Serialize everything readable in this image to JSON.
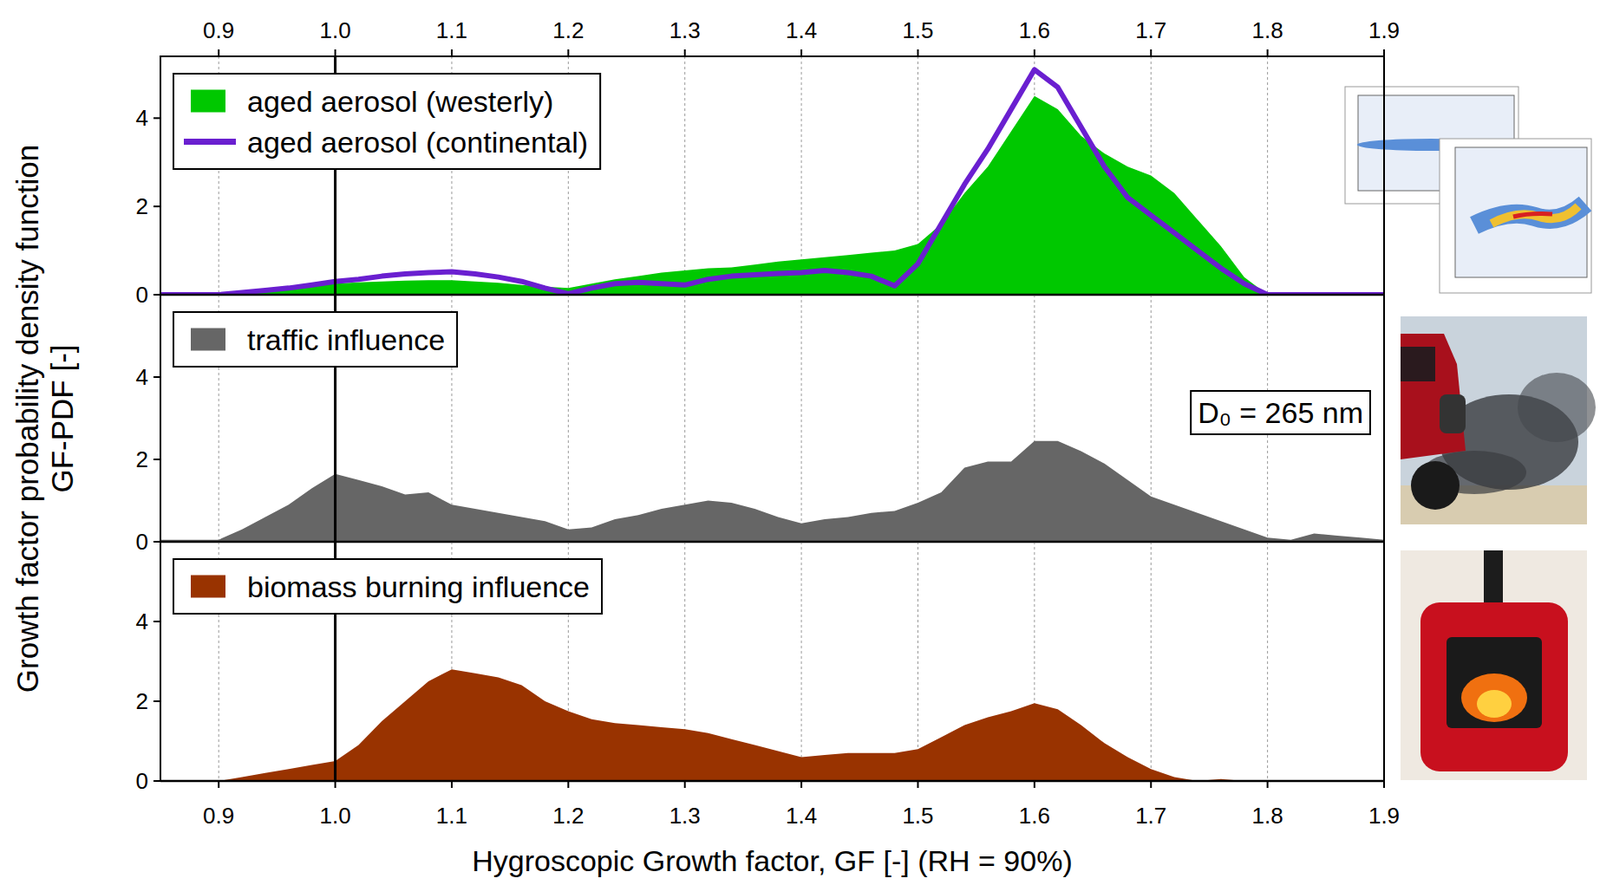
{
  "chart_data": [
    {
      "type": "area",
      "x": [
        0.85,
        0.9,
        0.92,
        0.94,
        0.96,
        0.98,
        1.0,
        1.02,
        1.04,
        1.06,
        1.08,
        1.1,
        1.12,
        1.14,
        1.16,
        1.18,
        1.2,
        1.22,
        1.24,
        1.26,
        1.28,
        1.3,
        1.32,
        1.34,
        1.36,
        1.38,
        1.4,
        1.42,
        1.44,
        1.46,
        1.48,
        1.5,
        1.52,
        1.54,
        1.56,
        1.58,
        1.6,
        1.62,
        1.64,
        1.66,
        1.68,
        1.7,
        1.72,
        1.74,
        1.76,
        1.78,
        1.8,
        1.82,
        1.84,
        1.86,
        1.88,
        1.9
      ],
      "series": [
        {
          "name": "aged aerosol (westerly)",
          "type": "area",
          "color": "#00c800",
          "values": [
            0,
            0,
            0.05,
            0.1,
            0.15,
            0.2,
            0.25,
            0.28,
            0.3,
            0.32,
            0.33,
            0.33,
            0.3,
            0.27,
            0.22,
            0.18,
            0.15,
            0.25,
            0.35,
            0.42,
            0.5,
            0.55,
            0.6,
            0.62,
            0.68,
            0.75,
            0.8,
            0.85,
            0.9,
            0.95,
            1.0,
            1.15,
            1.6,
            2.3,
            2.9,
            3.7,
            4.5,
            4.2,
            3.6,
            3.2,
            2.9,
            2.7,
            2.3,
            1.7,
            1.1,
            0.4,
            0,
            0,
            0,
            0,
            0,
            0
          ]
        },
        {
          "name": "aged aerosol (continental)",
          "type": "line",
          "color": "#6a1fd0",
          "values": [
            0,
            0,
            0.05,
            0.1,
            0.15,
            0.22,
            0.3,
            0.35,
            0.42,
            0.47,
            0.5,
            0.52,
            0.47,
            0.4,
            0.3,
            0.15,
            0.02,
            0.15,
            0.25,
            0.28,
            0.25,
            0.22,
            0.35,
            0.42,
            0.45,
            0.48,
            0.5,
            0.55,
            0.5,
            0.42,
            0.2,
            0.7,
            1.6,
            2.5,
            3.3,
            4.2,
            5.1,
            4.7,
            3.8,
            2.9,
            2.2,
            1.8,
            1.4,
            1.0,
            0.6,
            0.25,
            0,
            0,
            0,
            0,
            0,
            0
          ]
        }
      ],
      "xlim": [
        0.85,
        1.9
      ],
      "xticks": [
        0.9,
        {
          "value": 1,
          "label": "1.0"
        },
        1.1,
        1.2,
        1.3,
        1.4,
        1.5,
        1.6,
        1.7,
        1.8,
        1.9
      ],
      "ylim": [
        0,
        5.4
      ],
      "yticks": [
        0,
        2,
        4
      ],
      "grid": true,
      "legend": "upper left",
      "tick_labels": true,
      "reference_line": 1,
      "ylabel": [
        "Growth factor probability density function",
        "GF-PDF [-]"
      ]
    },
    {
      "type": "area",
      "x": [
        0.85,
        0.9,
        0.92,
        0.94,
        0.96,
        0.98,
        1.0,
        1.02,
        1.04,
        1.06,
        1.08,
        1.1,
        1.12,
        1.14,
        1.16,
        1.18,
        1.2,
        1.22,
        1.24,
        1.26,
        1.28,
        1.3,
        1.32,
        1.34,
        1.36,
        1.38,
        1.4,
        1.42,
        1.44,
        1.46,
        1.48,
        1.5,
        1.52,
        1.54,
        1.56,
        1.58,
        1.6,
        1.62,
        1.64,
        1.66,
        1.68,
        1.7,
        1.72,
        1.74,
        1.76,
        1.78,
        1.8,
        1.82,
        1.84,
        1.86,
        1.88,
        1.9
      ],
      "series": [
        {
          "name": "traffic influence",
          "color": "#666666",
          "values": [
            0.05,
            0.05,
            0.3,
            0.6,
            0.9,
            1.3,
            1.65,
            1.5,
            1.35,
            1.15,
            1.2,
            0.9,
            0.8,
            0.7,
            0.6,
            0.5,
            0.3,
            0.35,
            0.55,
            0.65,
            0.8,
            0.9,
            1.0,
            0.95,
            0.8,
            0.6,
            0.45,
            0.55,
            0.6,
            0.7,
            0.75,
            0.95,
            1.2,
            1.8,
            1.95,
            1.95,
            2.45,
            2.45,
            2.2,
            1.9,
            1.5,
            1.1,
            0.9,
            0.7,
            0.5,
            0.3,
            0.1,
            0.05,
            0.2,
            0.15,
            0.1,
            0.05
          ]
        }
      ],
      "xlim": [
        0.85,
        1.9
      ],
      "xticks": [
        0.9,
        {
          "value": 1,
          "label": "1.0"
        },
        1.1,
        1.2,
        1.3,
        1.4,
        1.5,
        1.6,
        1.7,
        1.8,
        1.9
      ],
      "ylim": [
        0,
        6
      ],
      "yticks": [
        0,
        2,
        4
      ],
      "grid": true,
      "legend": "upper left",
      "tick_labels": "y",
      "reference_line": 1,
      "annotation": "D₀ = 265 nm"
    },
    {
      "type": "area",
      "x": [
        0.85,
        0.9,
        0.92,
        0.94,
        0.96,
        0.98,
        1.0,
        1.02,
        1.04,
        1.06,
        1.08,
        1.1,
        1.12,
        1.14,
        1.16,
        1.18,
        1.2,
        1.22,
        1.24,
        1.26,
        1.28,
        1.3,
        1.32,
        1.34,
        1.36,
        1.38,
        1.4,
        1.42,
        1.44,
        1.46,
        1.48,
        1.5,
        1.52,
        1.54,
        1.56,
        1.58,
        1.6,
        1.62,
        1.64,
        1.66,
        1.68,
        1.7,
        1.72,
        1.74,
        1.76,
        1.78,
        1.8,
        1.82,
        1.84,
        1.86,
        1.88,
        1.9
      ],
      "series": [
        {
          "name": "biomass burning influence",
          "color": "#993300",
          "values": [
            0,
            0,
            0.1,
            0.2,
            0.3,
            0.4,
            0.5,
            0.9,
            1.5,
            2.0,
            2.5,
            2.8,
            2.7,
            2.6,
            2.4,
            2.0,
            1.75,
            1.55,
            1.45,
            1.4,
            1.35,
            1.3,
            1.2,
            1.05,
            0.9,
            0.75,
            0.6,
            0.65,
            0.7,
            0.7,
            0.7,
            0.8,
            1.1,
            1.4,
            1.6,
            1.75,
            1.95,
            1.8,
            1.4,
            0.95,
            0.6,
            0.3,
            0.1,
            0,
            0.05,
            0,
            0,
            0,
            0,
            0,
            0,
            0
          ]
        }
      ],
      "xlim": [
        0.85,
        1.9
      ],
      "xticks": [
        0.9,
        {
          "value": 1,
          "label": "1.0"
        },
        1.1,
        1.2,
        1.3,
        1.4,
        1.5,
        1.6,
        1.7,
        1.8,
        1.9
      ],
      "ylim": [
        0,
        6
      ],
      "yticks": [
        0,
        2,
        4
      ],
      "grid": true,
      "legend": "upper left",
      "tick_labels": true,
      "reference_line": 1,
      "xlabel": "Hygroscopic Growth factor, GF [-] (RH = 90%)"
    }
  ]
}
